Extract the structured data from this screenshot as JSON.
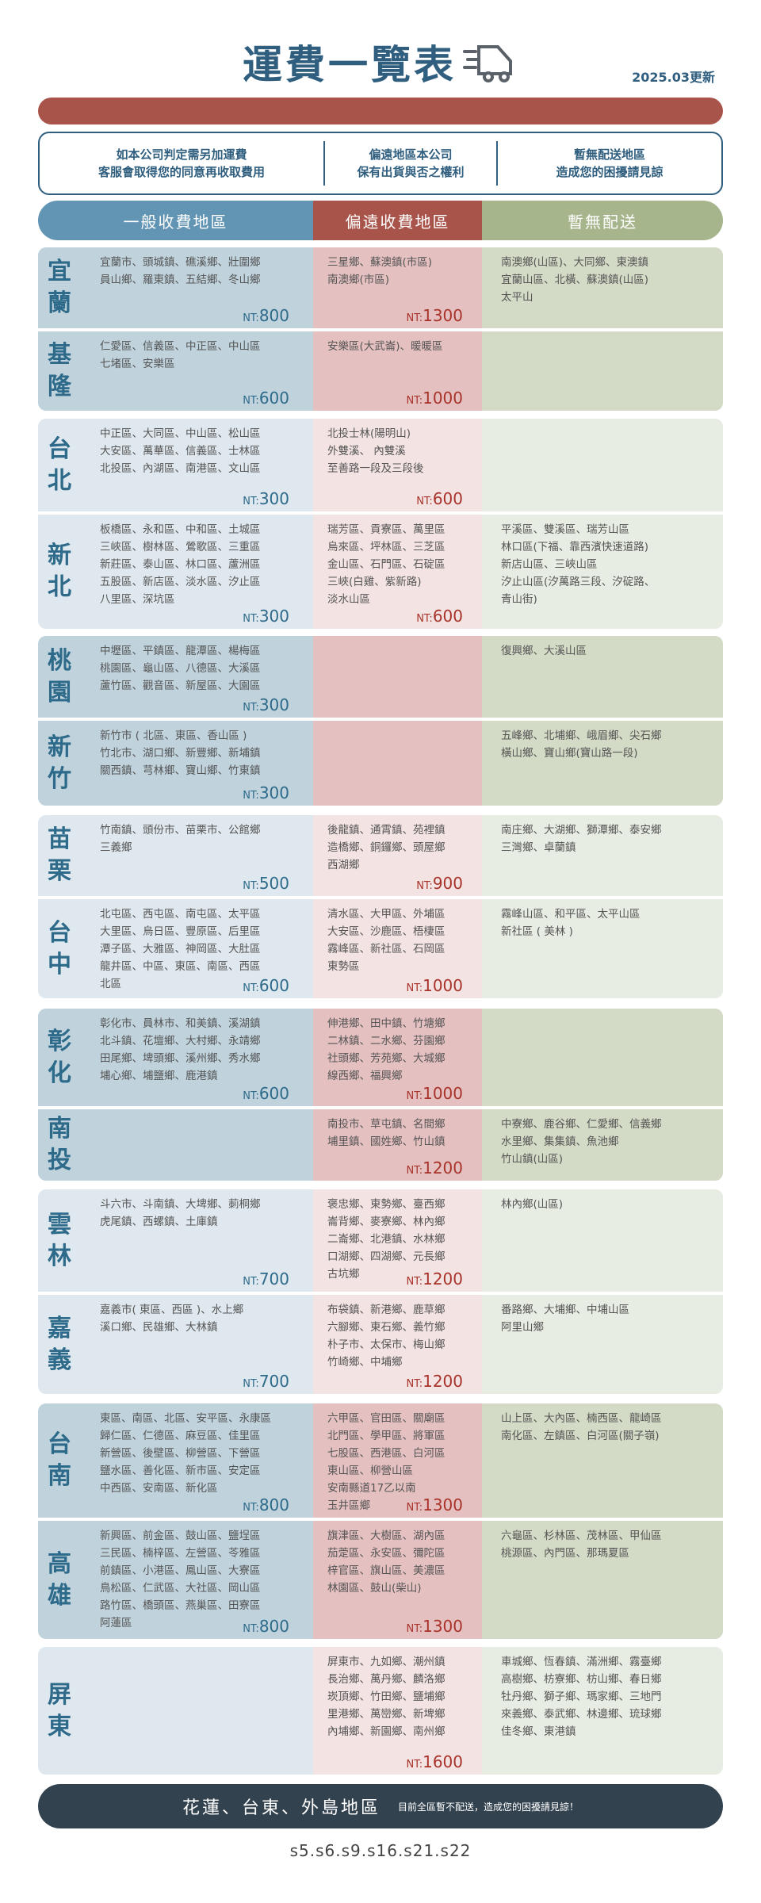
{
  "header": {
    "title": "運費一覽表",
    "truck_icon": "truck-icon",
    "updated": "2025.03更新"
  },
  "notice": [
    [
      "如本公司判定需另加運費",
      "客服會取得您的同意再收取費用"
    ],
    [
      "偏遠地區本公司",
      "保有出貨與否之權利"
    ],
    [
      "暫無配送地區",
      "造成您的困擾請見諒"
    ]
  ],
  "columns": {
    "general": "一般收費地區",
    "remote": "偏遠收費地區",
    "none": "暫無配送"
  },
  "price_prefix": "NT:",
  "colors": {
    "title": "#2f5e7f",
    "general": "#6294b4",
    "remote": "#a9544a",
    "none": "#a6b58c",
    "footer": "#33424f"
  },
  "groups": [
    {
      "rows": [
        {
          "name": "宜蘭",
          "general": {
            "lines": [
              "宜蘭市、頭城鎮、礁溪鄉、壯圍鄉",
              "員山鄉、羅東鎮、五結鄉、冬山鄉"
            ],
            "price": "800"
          },
          "remote": {
            "lines": [
              "三星鄉、蘇澳鎮(市區)",
              "南澳鄉(市區)"
            ],
            "price": "1300"
          },
          "none": {
            "lines": [
              "南澳鄉(山區)、大同鄉、東澳鎮",
              "宜蘭山區、北橫、蘇澳鎮(山區)",
              "太平山"
            ]
          }
        },
        {
          "name": "基隆",
          "general": {
            "lines": [
              "仁愛區、信義區、中正區、中山區",
              "七堵區、安樂區"
            ],
            "price": "600"
          },
          "remote": {
            "lines": [
              "安樂區(大武崙)、暖暖區"
            ],
            "price": "1000"
          },
          "none": {
            "lines": []
          }
        }
      ]
    },
    {
      "rows": [
        {
          "name": "台北",
          "general": {
            "lines": [
              "中正區、大同區、中山區、松山區",
              "大安區、萬華區、信義區、士林區",
              "北投區、內湖區、南港區、文山區"
            ],
            "price": "300"
          },
          "remote": {
            "lines": [
              "北投士林(陽明山)",
              "外雙溪、 內雙溪",
              "至善路一段及三段後"
            ],
            "price": "600"
          },
          "none": {
            "lines": []
          }
        },
        {
          "name": "新北",
          "general": {
            "lines": [
              "板橋區、永和區、中和區、土城區",
              "三峽區、樹林區、鶯歌區、三重區",
              "新莊區、泰山區、林口區、蘆洲區",
              "五股區、新店區、淡水區、汐止區",
              "八里區、深坑區"
            ],
            "price": "300"
          },
          "remote": {
            "lines": [
              "瑞芳區、貢寮區、萬里區",
              "烏來區、坪林區、三芝區",
              "金山區、石門區、石碇區",
              "三峽(白雞、紫新路)",
              "淡水山區"
            ],
            "price": "600"
          },
          "none": {
            "lines": [
              "平溪區、雙溪區、瑞芳山區",
              "林口區(下福、靠西濱快速道路)",
              "新店山區、三峽山區",
              "汐止山區(汐萬路三段、汐碇路、",
              "青山街)"
            ]
          }
        }
      ]
    },
    {
      "rows": [
        {
          "name": "桃園",
          "general": {
            "lines": [
              "中壢區、平鎮區、龍潭區、楊梅區",
              "桃園區、龜山區、八德區、大溪區",
              "蘆竹區、觀音區、新屋區、大園區"
            ],
            "price": "300"
          },
          "remote": {
            "lines": []
          },
          "none": {
            "lines": [
              "復興鄉、大溪山區"
            ]
          }
        },
        {
          "name": "新竹",
          "general": {
            "lines": [
              "新竹市 ( 北區、東區、香山區 )",
              "竹北市、湖口鄉、新豐鄉、新埔鎮",
              "關西鎮、芎林鄉、寶山鄉、竹東鎮"
            ],
            "price": "300"
          },
          "remote": {
            "lines": []
          },
          "none": {
            "lines": [
              "五峰鄉、北埔鄉、峨眉鄉、尖石鄉",
              "橫山鄉、寶山鄉(寶山路一段)"
            ]
          }
        }
      ]
    },
    {
      "rows": [
        {
          "name": "苗栗",
          "general": {
            "lines": [
              "竹南鎮、頭份市、苗栗市、公館鄉",
              "三義鄉"
            ],
            "price": "500"
          },
          "remote": {
            "lines": [
              "後龍鎮、通霄鎮、苑裡鎮",
              "造橋鄉、銅鑼鄉、頭屋鄉",
              "西湖鄉"
            ],
            "price": "900"
          },
          "none": {
            "lines": [
              "南庄鄉、大湖鄉、獅潭鄉、泰安鄉",
              "三灣鄉、卓蘭鎮"
            ]
          }
        },
        {
          "name": "台中",
          "general": {
            "lines": [
              "北屯區、西屯區、南屯區、太平區",
              "大里區、烏日區、豐原區、后里區",
              "潭子區、大雅區、神岡區、大肚區",
              "龍井區、中區、東區、南區、西區",
              "北區"
            ],
            "price": "600"
          },
          "remote": {
            "lines": [
              "清水區、大甲區、外埔區",
              "大安區、沙鹿區、梧棲區",
              "霧峰區、新社區、石岡區",
              "東勢區"
            ],
            "price": "1000"
          },
          "none": {
            "lines": [
              "霧峰山區、和平區、太平山區",
              "新社區 ( 美林 )"
            ]
          }
        }
      ]
    },
    {
      "rows": [
        {
          "name": "彰化",
          "general": {
            "lines": [
              "彰化市、員林市、和美鎮、溪湖鎮",
              "北斗鎮、花壇鄉、大村鄉、永靖鄉",
              "田尾鄉、埤頭鄉、溪州鄉、秀水鄉",
              "埔心鄉、埔鹽鄉、鹿港鎮"
            ],
            "price": "600"
          },
          "remote": {
            "lines": [
              "伸港鄉、田中鎮、竹塘鄉",
              "二林鎮、二水鄉、芬園鄉",
              "社頭鄉、芳苑鄉、大城鄉",
              "線西鄉、福興鄉"
            ],
            "price": "1000"
          },
          "none": {
            "lines": []
          }
        },
        {
          "name": "南投",
          "general": {
            "lines": []
          },
          "remote": {
            "lines": [
              "南投市、草屯鎮、名間鄉",
              "埔里鎮、國姓鄉、竹山鎮"
            ],
            "price": "1200"
          },
          "none": {
            "lines": [
              "中寮鄉、鹿谷鄉、仁愛鄉、信義鄉",
              "水里鄉、集集鎮、魚池鄉",
              "竹山鎮(山區)"
            ]
          }
        }
      ]
    },
    {
      "rows": [
        {
          "name": "雲林",
          "general": {
            "lines": [
              "斗六市、斗南鎮、大埤鄉、莿桐鄉",
              "虎尾鎮、西螺鎮、土庫鎮"
            ],
            "price": "700"
          },
          "remote": {
            "lines": [
              "褒忠鄉、東勢鄉、臺西鄉",
              "崙背鄉、麥寮鄉、林內鄉",
              "二崙鄉、北港鎮、水林鄉",
              "口湖鄉、四湖鄉、元長鄉",
              "古坑鄉"
            ],
            "price": "1200"
          },
          "none": {
            "lines": [
              "林內鄉(山區)"
            ]
          }
        },
        {
          "name": "嘉義",
          "general": {
            "lines": [
              "嘉義市( 東區、西區 )、水上鄉",
              "溪口鄉、民雄鄉、大林鎮"
            ],
            "price": "700"
          },
          "remote": {
            "lines": [
              "布袋鎮、新港鄉、鹿草鄉",
              "六腳鄉、東石鄉、義竹鄉",
              "朴子市、太保市、梅山鄉",
              "竹崎鄉、中埔鄉"
            ],
            "price": "1200"
          },
          "none": {
            "lines": [
              "番路鄉、大埔鄉、中埔山區",
              "阿里山鄉"
            ]
          }
        }
      ]
    },
    {
      "rows": [
        {
          "name": "台南",
          "general": {
            "lines": [
              "東區、南區、北區、安平區、永康區",
              "歸仁區、仁德區、麻豆區、佳里區",
              "新營區、後壁區、柳營區、下營區",
              "鹽水區、善化區、新市區、安定區",
              "中西區、安南區、新化區"
            ],
            "price": "800"
          },
          "remote": {
            "lines": [
              "六甲區、官田區、關廟區",
              "北門區、學甲區、將軍區",
              "七股區、西港區、白河區",
              "東山區、柳營山區",
              "安南縣道17乙以南",
              "玉井區鄉"
            ],
            "price": "1300"
          },
          "none": {
            "lines": [
              "山上區、大內區、楠西區、龍崎區",
              "南化區、左鎮區、白河區(關子嶺)"
            ]
          }
        },
        {
          "name": "高雄",
          "general": {
            "lines": [
              "新興區、前金區、鼓山區、鹽埕區",
              "三民區、楠梓區、左營區、苓雅區",
              "前鎮區、小港區、鳳山區、大寮區",
              "鳥松區、仁武區、大社區、岡山區",
              "路竹區、橋頭區、燕巢區、田寮區",
              "阿蓮區"
            ],
            "price": "800"
          },
          "remote": {
            "lines": [
              "旗津區、大樹區、湖內區",
              "茄萣區、永安區、彌陀區",
              "梓官區、旗山區、美濃區",
              "林園區、鼓山(柴山)"
            ],
            "price": "1300"
          },
          "none": {
            "lines": [
              "六龜區、杉林區、茂林區、甲仙區",
              "桃源區、內門區、那瑪夏區"
            ]
          }
        }
      ]
    },
    {
      "rows": [
        {
          "name": "屏東",
          "general": {
            "lines": []
          },
          "remote": {
            "lines": [
              "屏東市、九如鄉、潮州鎮",
              "長治鄉、萬丹鄉、麟洛鄉",
              "崁頂鄉、竹田鄉、鹽埔鄉",
              "里港鄉、萬巒鄉、新埤鄉",
              "內埔鄉、新園鄉、南州鄉"
            ],
            "price": "1600"
          },
          "none": {
            "lines": [
              "車城鄉、恆春鎮、滿洲鄉、霧臺鄉",
              "高樹鄉、枋寮鄉、枋山鄉、春日鄉",
              "牡丹鄉、獅子鄉、瑪家鄉、三地門",
              "來義鄉、泰武鄉、林邊鄉、琉球鄉",
              "佳冬鄉、東港鎮"
            ]
          }
        }
      ]
    }
  ],
  "footer": {
    "regions": "花蓮、台東、外島地區",
    "note": "目前全區暫不配送，造成您的困擾請見諒！"
  },
  "code": "s5.s6.s9.s16.s21.s22"
}
